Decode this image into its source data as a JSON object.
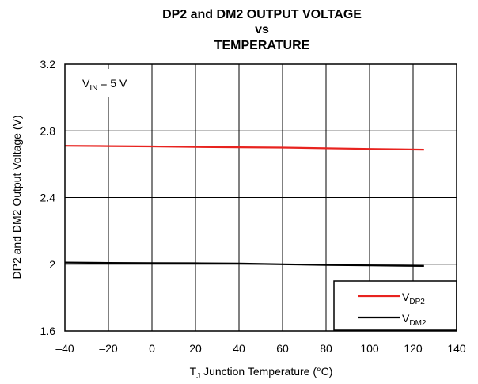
{
  "chart_data": {
    "type": "line",
    "title_lines": [
      "DP2 and DM2 OUTPUT VOLTAGE",
      "vs",
      "TEMPERATURE"
    ],
    "xlabel": {
      "main": "T",
      "sub": "J",
      "rest": " Junction Temperature (°C)"
    },
    "ylabel": "DP2 and DM2 Output Voltage (V)",
    "xlim": [
      -40,
      140
    ],
    "ylim": [
      1.6,
      3.2
    ],
    "x_ticks": [
      -40,
      -20,
      0,
      20,
      40,
      60,
      80,
      100,
      120,
      140
    ],
    "x_tick_labels": [
      "–40",
      "–20",
      "0",
      "20",
      "40",
      "60",
      "80",
      "100",
      "120",
      "140"
    ],
    "y_ticks": [
      1.6,
      2.0,
      2.4,
      2.8,
      3.2
    ],
    "y_tick_labels": [
      "1.6",
      "2",
      "2.4",
      "2.8",
      "3.2"
    ],
    "grid": true,
    "annotation": {
      "main": "V",
      "sub": "IN",
      "rest": " = 5 V"
    },
    "legend_position": "bottom-right",
    "series": [
      {
        "name": "V_DP2",
        "label_main": "V",
        "label_sub": "DP2",
        "color": "#e8231f",
        "x": [
          -40,
          -20,
          0,
          20,
          40,
          60,
          80,
          100,
          125
        ],
        "y": [
          2.71,
          2.708,
          2.706,
          2.703,
          2.701,
          2.699,
          2.695,
          2.691,
          2.687
        ]
      },
      {
        "name": "V_DM2",
        "label_main": "V",
        "label_sub": "DM2",
        "color": "#000000",
        "x": [
          -40,
          -20,
          0,
          20,
          40,
          60,
          80,
          100,
          125
        ],
        "y": [
          2.01,
          2.008,
          2.007,
          2.006,
          2.004,
          2.0,
          1.996,
          1.993,
          1.99
        ]
      }
    ]
  }
}
